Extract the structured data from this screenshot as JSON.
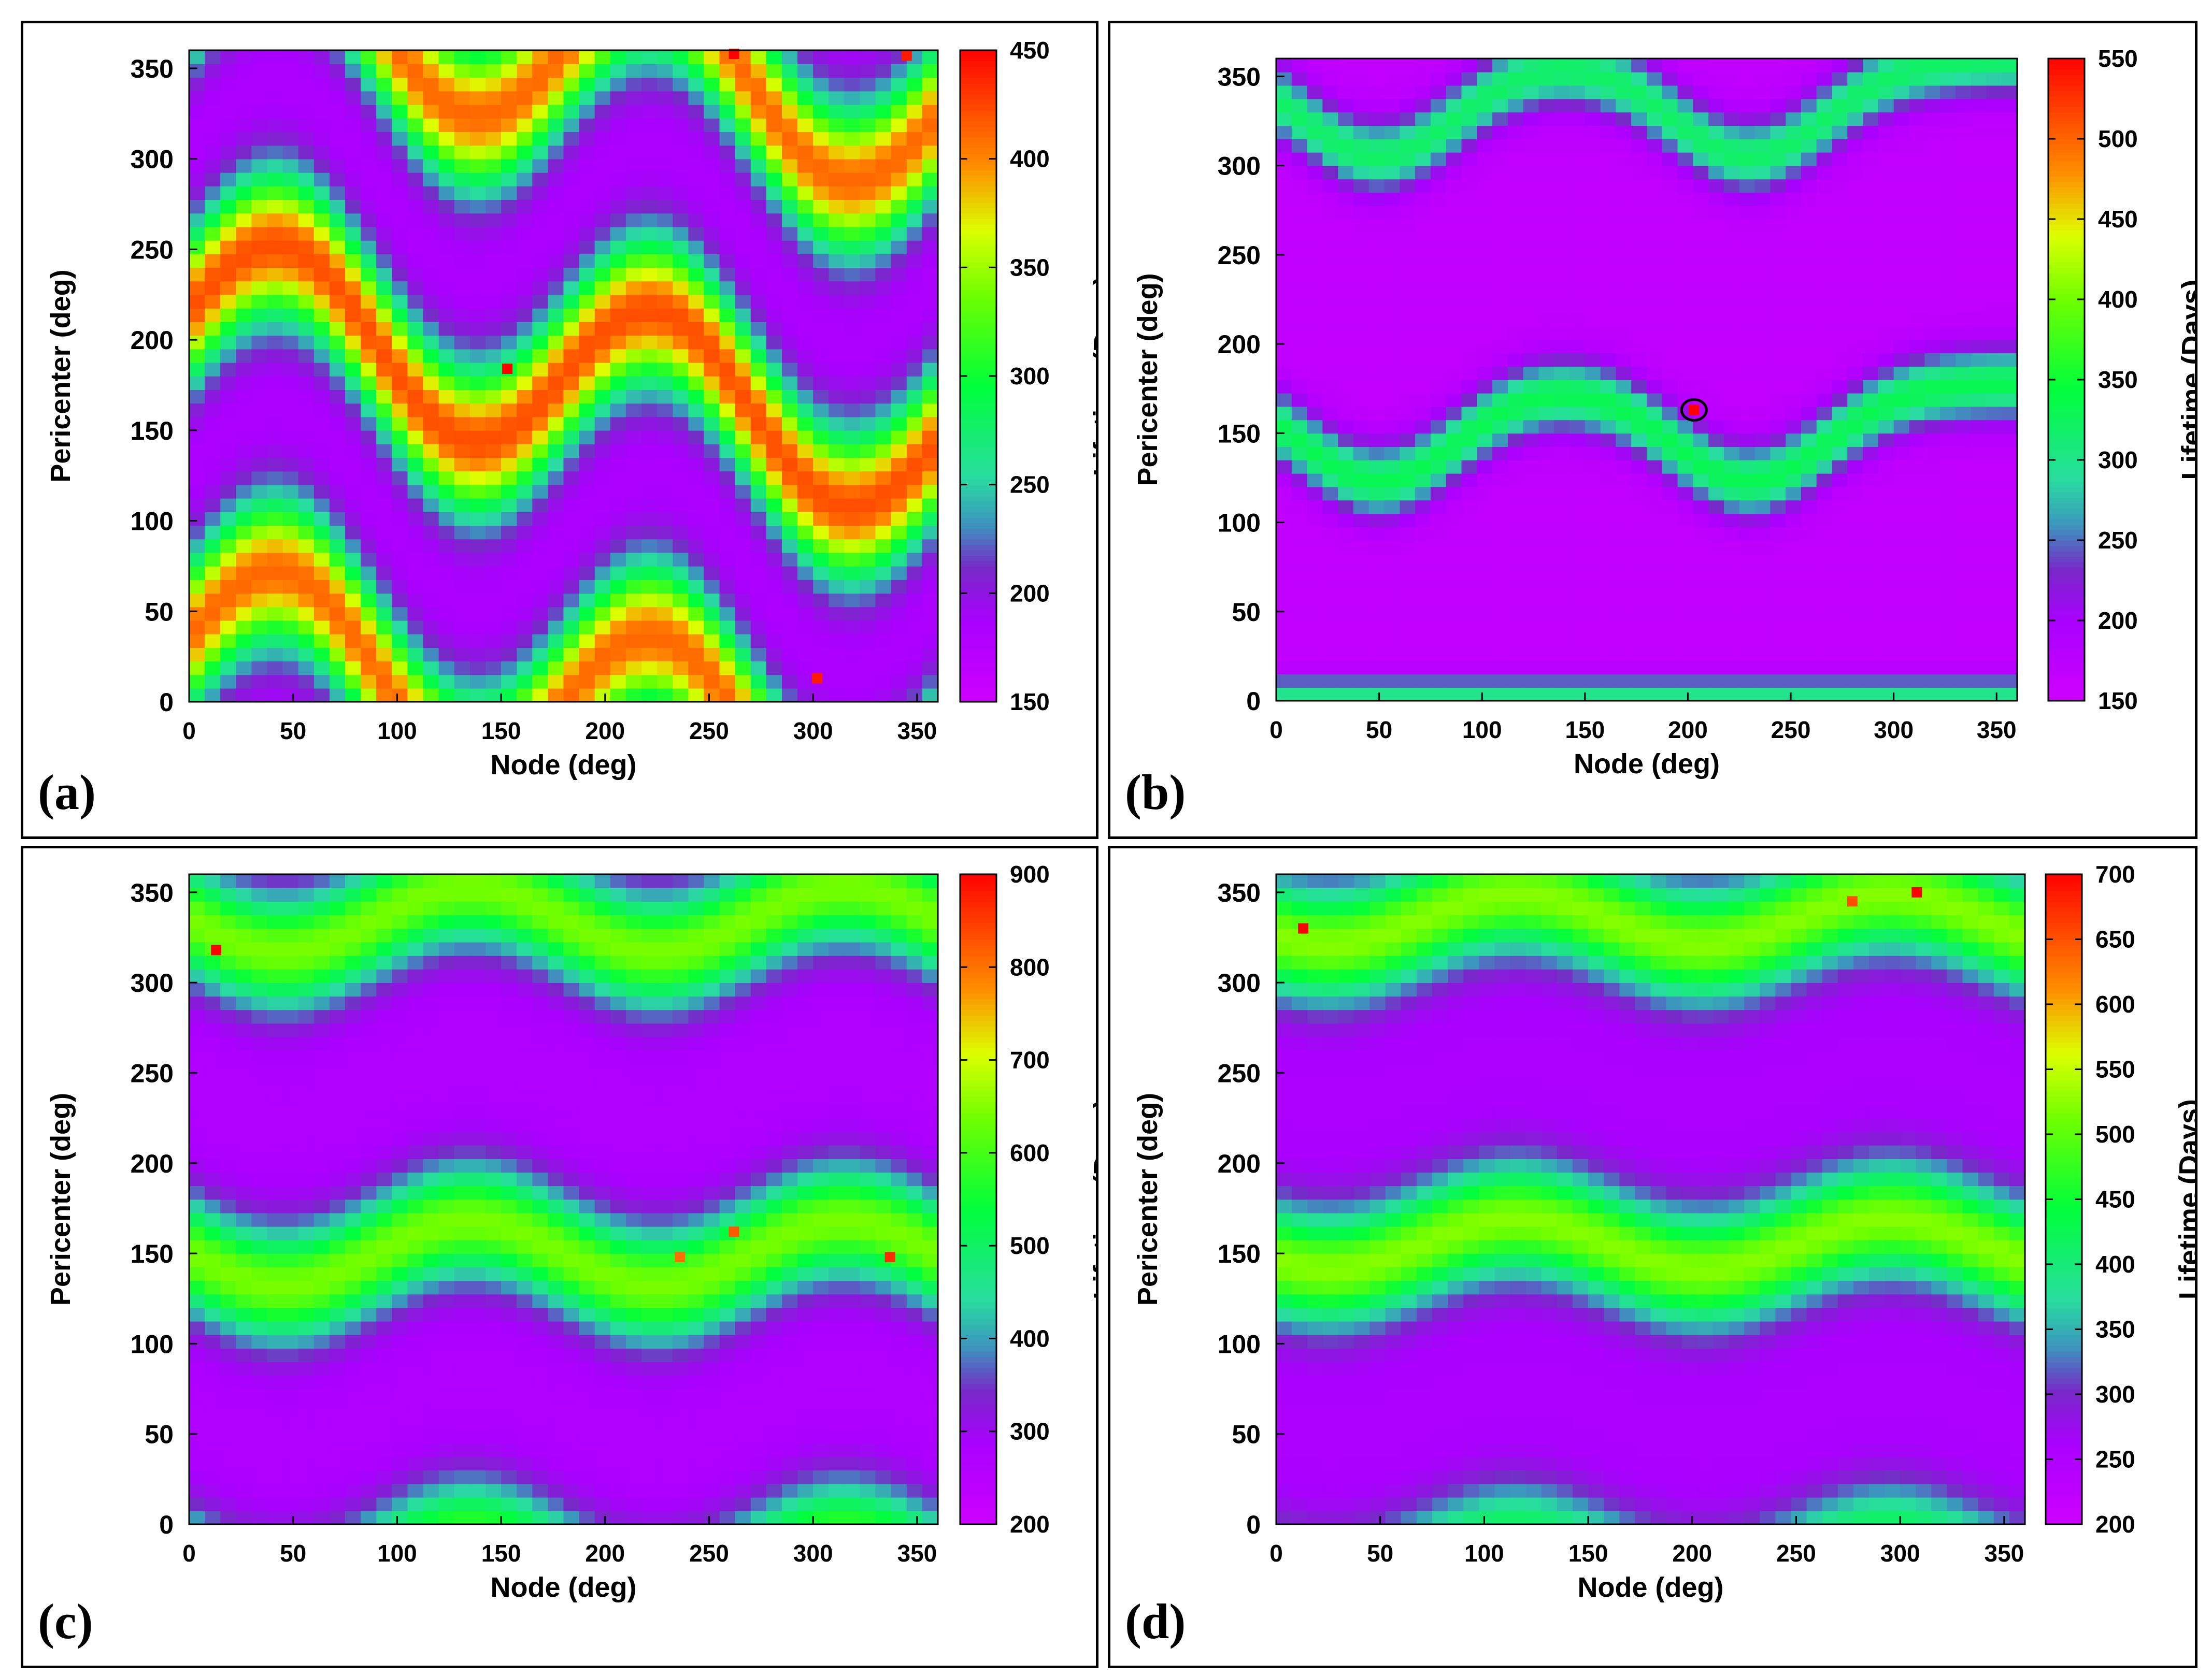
{
  "figure_title": "",
  "chart_data": [
    {
      "type": "heatmap",
      "panel_label": "(a)",
      "xlabel": "Node (deg)",
      "ylabel": "Pericenter (deg)",
      "colorbar_label": "Lifetime (Days)",
      "x_ticks": [
        "0",
        "50",
        "100",
        "150",
        "200",
        "250",
        "300",
        "350"
      ],
      "y_ticks": [
        "0",
        "50",
        "100",
        "150",
        "200",
        "250",
        "300",
        "350"
      ],
      "colorbar_ticks": [
        "150",
        "200",
        "250",
        "300",
        "350",
        "400",
        "450"
      ],
      "xlim": [
        0,
        360
      ],
      "ylim": [
        0,
        360
      ],
      "zlim": [
        150,
        450
      ],
      "pattern": "tilted-wave",
      "bands": [
        {
          "center": 180,
          "amplitude": 45,
          "phase": 0,
          "period": 180,
          "tilt": 0.8,
          "halfwidth": 28,
          "peak": 420
        },
        {
          "center": 0,
          "amplitude": 45,
          "phase": 0,
          "period": 180,
          "tilt": 0.8,
          "halfwidth": 28,
          "peak": 410
        },
        {
          "center": 360,
          "amplitude": 45,
          "phase": 0,
          "period": 180,
          "tilt": 0.8,
          "halfwidth": 28,
          "peak": 410
        }
      ],
      "background": 180,
      "hotspots": [
        {
          "x": 153,
          "y": 184,
          "z": 450
        },
        {
          "x": 262,
          "y": 358,
          "z": 450
        },
        {
          "x": 302,
          "y": 13,
          "z": 440
        },
        {
          "x": 345,
          "y": 357,
          "z": 440
        }
      ],
      "marked_point": null
    },
    {
      "type": "heatmap",
      "panel_label": "(b)",
      "xlabel": "Node (deg)",
      "ylabel": "Pericenter (deg)",
      "colorbar_label": "Lifetime (Days)",
      "x_ticks": [
        "0",
        "50",
        "100",
        "150",
        "200",
        "250",
        "300",
        "350"
      ],
      "y_ticks": [
        "0",
        "50",
        "100",
        "150",
        "200",
        "250",
        "300",
        "350"
      ],
      "colorbar_ticks": [
        "150",
        "200",
        "250",
        "300",
        "350",
        "400",
        "450",
        "500",
        "550"
      ],
      "xlim": [
        0,
        360
      ],
      "ylim": [
        0,
        360
      ],
      "zlim": [
        150,
        550
      ],
      "pattern": "dips",
      "bands": [
        {
          "center": 178,
          "amplitude": -55,
          "dip_nodes": [
            50,
            230
          ],
          "dip_width": 38,
          "halfwidth": 14,
          "peak": 330
        },
        {
          "center": 360,
          "amplitude": -55,
          "dip_nodes": [
            50,
            230
          ],
          "dip_width": 38,
          "halfwidth": 14,
          "peak": 320
        },
        {
          "center": 5,
          "amplitude": 0,
          "dip_nodes": [],
          "dip_width": 38,
          "halfwidth": 6,
          "peak": 300
        }
      ],
      "background": 165,
      "hotspots": [
        {
          "x": 203,
          "y": 163,
          "z": 550
        }
      ],
      "marked_point": {
        "x": 203,
        "y": 163
      }
    },
    {
      "type": "heatmap",
      "panel_label": "(c)",
      "xlabel": "Node (deg)",
      "ylabel": "Pericenter (deg)",
      "colorbar_label": "Lifetime (Days)",
      "x_ticks": [
        "0",
        "50",
        "100",
        "150",
        "200",
        "250",
        "300",
        "350"
      ],
      "y_ticks": [
        "0",
        "50",
        "100",
        "150",
        "200",
        "250",
        "300",
        "350"
      ],
      "colorbar_ticks": [
        "200",
        "300",
        "400",
        "500",
        "600",
        "700",
        "800",
        "900"
      ],
      "xlim": [
        0,
        360
      ],
      "ylim": [
        0,
        360
      ],
      "zlim": [
        200,
        900
      ],
      "pattern": "wave",
      "bands": [
        {
          "center": 150,
          "amplitude": 18,
          "phase": 90,
          "period": 180,
          "halfwidth": 22,
          "peak": 640
        },
        {
          "center": 335,
          "amplitude": 18,
          "phase": 90,
          "period": 180,
          "halfwidth": 22,
          "peak": 640
        },
        {
          "center": -25,
          "amplitude": 18,
          "phase": 90,
          "period": 180,
          "halfwidth": 22,
          "peak": 600
        }
      ],
      "background": 270,
      "hotspots": [
        {
          "x": 13,
          "y": 318,
          "z": 900
        },
        {
          "x": 262,
          "y": 162,
          "z": 820
        },
        {
          "x": 337,
          "y": 148,
          "z": 860
        },
        {
          "x": 236,
          "y": 148,
          "z": 800
        }
      ],
      "marked_point": null
    },
    {
      "type": "heatmap",
      "panel_label": "(d)",
      "xlabel": "Node (deg)",
      "ylabel": "Pericenter (deg)",
      "colorbar_label": "Lifetime (Days)",
      "x_ticks": [
        "0",
        "50",
        "100",
        "150",
        "200",
        "250",
        "300",
        "350"
      ],
      "y_ticks": [
        "0",
        "50",
        "100",
        "150",
        "200",
        "250",
        "300",
        "350"
      ],
      "colorbar_ticks": [
        "200",
        "250",
        "300",
        "350",
        "400",
        "450",
        "500",
        "550",
        "600",
        "650",
        "700"
      ],
      "xlim": [
        0,
        360
      ],
      "ylim": [
        0,
        360
      ],
      "zlim": [
        200,
        700
      ],
      "pattern": "wave",
      "bands": [
        {
          "center": 155,
          "amplitude": 14,
          "phase": 110,
          "period": 180,
          "halfwidth": 22,
          "peak": 520
        },
        {
          "center": 335,
          "amplitude": 14,
          "phase": 110,
          "period": 180,
          "halfwidth": 22,
          "peak": 520
        },
        {
          "center": -20,
          "amplitude": 14,
          "phase": 110,
          "period": 180,
          "halfwidth": 20,
          "peak": 430
        }
      ],
      "background": 255,
      "hotspots": [
        {
          "x": 13,
          "y": 330,
          "z": 700
        },
        {
          "x": 308,
          "y": 350,
          "z": 700
        },
        {
          "x": 277,
          "y": 345,
          "z": 650
        }
      ],
      "marked_point": null
    }
  ]
}
